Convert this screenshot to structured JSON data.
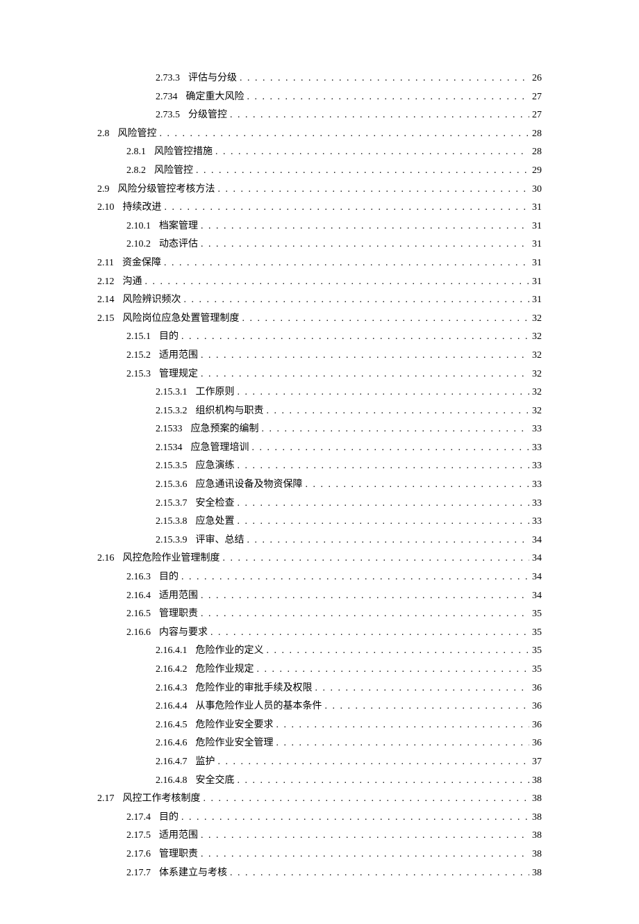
{
  "toc": [
    {
      "num": "2.73.3",
      "title": "评估与分级",
      "page": "26",
      "indent": 2
    },
    {
      "num": "2.734",
      "title": "确定重大风险",
      "page": "27",
      "indent": 2
    },
    {
      "num": "2.73.5",
      "title": "分级管控",
      "page": "27",
      "indent": 2
    },
    {
      "num": "2.8",
      "title": "风险管控",
      "page": "28",
      "indent": 0
    },
    {
      "num": "2.8.1",
      "title": "风险管控措施",
      "page": "28",
      "indent": 1
    },
    {
      "num": "2.8.2",
      "title": "风险管控",
      "page": "29",
      "indent": 1
    },
    {
      "num": "2.9",
      "title": "风险分级管控考核方法",
      "page": "30",
      "indent": 0
    },
    {
      "num": "2.10",
      "title": "持续改进",
      "page": "31",
      "indent": 0
    },
    {
      "num": "2.10.1",
      "title": "档案管理",
      "page": "31",
      "indent": 1
    },
    {
      "num": "2.10.2",
      "title": "动态评估",
      "page": "31",
      "indent": 1
    },
    {
      "num": "2.11",
      "title": "资金保障",
      "page": "31",
      "indent": 0
    },
    {
      "num": "2.12",
      "title": "沟通",
      "page": "31",
      "indent": 0
    },
    {
      "num": "2.14",
      "title": "风险辨识频次",
      "page": "31",
      "indent": 0
    },
    {
      "num": "2.15",
      "title": "风险岗位应急处置管理制度",
      "page": "32",
      "indent": 0
    },
    {
      "num": "2.15.1",
      "title": "目的",
      "page": "32",
      "indent": 1
    },
    {
      "num": "2.15.2",
      "title": "适用范围",
      "page": "32",
      "indent": 1
    },
    {
      "num": "2.15.3",
      "title": "管理规定",
      "page": "32",
      "indent": 1
    },
    {
      "num": "2.15.3.1",
      "title": "工作原则",
      "page": "32",
      "indent": 2
    },
    {
      "num": "2.15.3.2",
      "title": "组织机构与职责",
      "page": "32",
      "indent": 2
    },
    {
      "num": "2.1533",
      "title": "应急预案的编制",
      "page": "33",
      "indent": 2
    },
    {
      "num": "2.1534",
      "title": "应急管理培训",
      "page": "33",
      "indent": 2
    },
    {
      "num": "2.15.3.5",
      "title": "应急演练",
      "page": "33",
      "indent": 2
    },
    {
      "num": "2.15.3.6",
      "title": "应急通讯设备及物资保障",
      "page": "33",
      "indent": 2
    },
    {
      "num": "2.15.3.7",
      "title": "安全检查",
      "page": "33",
      "indent": 2
    },
    {
      "num": "2.15.3.8",
      "title": "应急处置",
      "page": "33",
      "indent": 2
    },
    {
      "num": "2.15.3.9",
      "title": "评审、总结",
      "page": "34",
      "indent": 2
    },
    {
      "num": "2.16",
      "title": "风控危险作业管理制度",
      "page": "34",
      "indent": 0
    },
    {
      "num": "2.16.3",
      "title": "目的",
      "page": "34",
      "indent": 1
    },
    {
      "num": "2.16.4",
      "title": "适用范围",
      "page": "34",
      "indent": 1
    },
    {
      "num": "2.16.5",
      "title": "管理职责",
      "page": "35",
      "indent": 1
    },
    {
      "num": "2.16.6",
      "title": "内容与要求",
      "page": "35",
      "indent": 1
    },
    {
      "num": "2.16.4.1",
      "title": "危险作业的定义",
      "page": "35",
      "indent": 2
    },
    {
      "num": "2.16.4.2",
      "title": "危险作业规定",
      "page": "35",
      "indent": 2
    },
    {
      "num": "2.16.4.3",
      "title": "危险作业的审批手续及权限",
      "page": "36",
      "indent": 2
    },
    {
      "num": "2.16.4.4",
      "title": "从事危险作业人员的基本条件",
      "page": "36",
      "indent": 2
    },
    {
      "num": "2.16.4.5",
      "title": "危险作业安全要求",
      "page": "36",
      "indent": 2
    },
    {
      "num": "2.16.4.6",
      "title": "危险作业安全管理",
      "page": "36",
      "indent": 2
    },
    {
      "num": "2.16.4.7",
      "title": "监护",
      "page": "37",
      "indent": 2
    },
    {
      "num": "2.16.4.8",
      "title": "安全交底",
      "page": "38",
      "indent": 2
    },
    {
      "num": "2.17",
      "title": "风控工作考核制度",
      "page": "38",
      "indent": 0
    },
    {
      "num": "2.17.4",
      "title": "目的",
      "page": "38",
      "indent": 1
    },
    {
      "num": "2.17.5",
      "title": "适用范围",
      "page": "38",
      "indent": 1
    },
    {
      "num": "2.17.6",
      "title": "管理职责",
      "page": "38",
      "indent": 1
    },
    {
      "num": "2.17.7",
      "title": "体系建立与考核",
      "page": "38",
      "indent": 1
    }
  ]
}
